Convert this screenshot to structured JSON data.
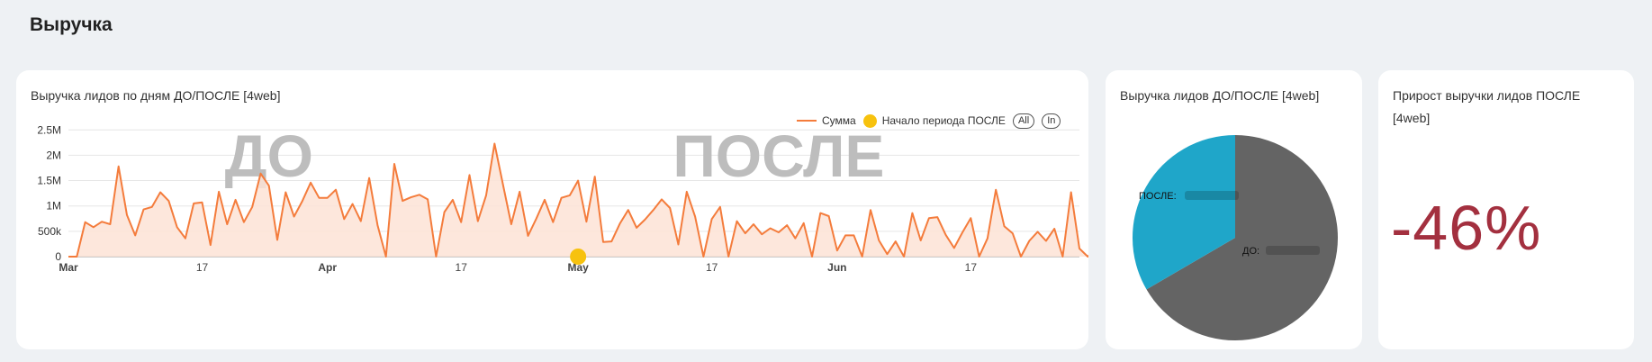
{
  "page": {
    "section_title": "Выручка"
  },
  "line_card": {
    "title": "Выручка лидов по дням ДО/ПОСЛЕ [4web]",
    "legend": {
      "series_label": "Сумма",
      "marker_label": "Начало периода ПОСЛЕ",
      "button_all": "All",
      "button_in": "In"
    },
    "watermark_before": "ДО",
    "watermark_after": "ПОСЛЕ"
  },
  "pie_card": {
    "title": "Выручка лидов ДО/ПОСЛЕ [4web]"
  },
  "kpi_card": {
    "title": "Прирост выручки лидов ПОСЛЕ [4web]",
    "value": "-46%"
  },
  "colors": {
    "line": "#f47c3c",
    "area": "#fde3d6",
    "marker": "#f7c20e",
    "pie_before": "#646464",
    "pie_after": "#1fa6c9",
    "kpi": "#a3303f",
    "watermark": "#bdbdbd"
  },
  "chart_data": [
    {
      "type": "area",
      "title": "Выручка лидов по дням ДО/ПОСЛЕ [4web]",
      "x_start": "2024-03-01",
      "x_step": "1 day",
      "ylim": [
        0,
        2700000
      ],
      "y_ticks": [
        0,
        500000,
        1000000,
        1500000,
        2000000,
        2500000
      ],
      "y_tick_labels": [
        "0",
        "500k",
        "1M",
        "1.5M",
        "2M",
        "2.5M"
      ],
      "x_tick_labels": [
        {
          "date": "2024-03-01",
          "label": "Mar"
        },
        {
          "date": "2024-03-17",
          "label": "17"
        },
        {
          "date": "2024-04-01",
          "label": "Apr"
        },
        {
          "date": "2024-04-17",
          "label": "17"
        },
        {
          "date": "2024-05-01",
          "label": "May"
        },
        {
          "date": "2024-05-17",
          "label": "17"
        },
        {
          "date": "2024-06-01",
          "label": "Jun"
        },
        {
          "date": "2024-06-17",
          "label": "17"
        }
      ],
      "x_end": "2024-06-30",
      "grid": true,
      "legend": "top-right",
      "series": [
        {
          "name": "Сумма",
          "values": [
            0,
            0,
            680000,
            580000,
            690000,
            640000,
            1780000,
            820000,
            420000,
            930000,
            980000,
            1270000,
            1100000,
            580000,
            360000,
            1050000,
            1070000,
            230000,
            1280000,
            640000,
            1120000,
            680000,
            980000,
            1640000,
            1400000,
            330000,
            1270000,
            790000,
            1100000,
            1460000,
            1160000,
            1160000,
            1320000,
            740000,
            1040000,
            700000,
            1550000,
            620000,
            0,
            1830000,
            1100000,
            1170000,
            1220000,
            1130000,
            0,
            880000,
            1120000,
            680000,
            1610000,
            700000,
            1210000,
            2230000,
            1430000,
            640000,
            1280000,
            410000,
            750000,
            1120000,
            680000,
            1160000,
            1210000,
            1500000,
            690000,
            1580000,
            290000,
            300000,
            650000,
            920000,
            570000,
            730000,
            920000,
            1130000,
            960000,
            240000,
            1280000,
            790000,
            0,
            740000,
            980000,
            0,
            700000,
            460000,
            640000,
            440000,
            560000,
            480000,
            620000,
            360000,
            660000,
            0,
            860000,
            800000,
            120000,
            420000,
            420000,
            0,
            920000,
            320000,
            50000,
            300000,
            0,
            860000,
            320000,
            760000,
            780000,
            430000,
            170000,
            480000,
            760000,
            0,
            360000,
            1320000,
            600000,
            460000,
            0,
            310000,
            490000,
            310000,
            550000,
            0,
            1270000,
            160000,
            0,
            160000
          ]
        }
      ],
      "marker": {
        "label": "Начало периода ПОСЛЕ",
        "date": "2024-05-01",
        "y": 0
      },
      "watermarks": [
        "ДО",
        "ПОСЛЕ"
      ]
    },
    {
      "type": "pie",
      "title": "Выручка лидов ДО/ПОСЛЕ [4web]",
      "slices": [
        {
          "label": "ДО:",
          "share": 0.666,
          "color": "#646464"
        },
        {
          "label": "ПОСЛЕ:",
          "share": 0.334,
          "color": "#1fa6c9"
        }
      ]
    }
  ]
}
